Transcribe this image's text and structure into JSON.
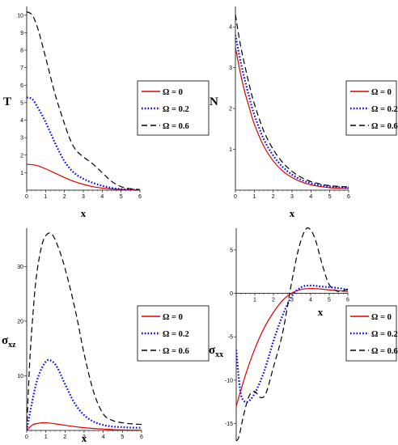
{
  "chart_data": [
    {
      "type": "line",
      "xlabel": "x",
      "ylabel": "T",
      "xlim": [
        0,
        6
      ],
      "ylim": [
        0,
        10.5
      ],
      "xticks": [
        "0",
        "1",
        "2",
        "3",
        "4",
        "5",
        "6"
      ],
      "yticks": [
        "1",
        "2",
        "3",
        "4",
        "5",
        "6",
        "7",
        "8",
        "9",
        "10"
      ],
      "legend": "right",
      "series": [
        {
          "name": "Ω = 0",
          "color": "#e00000",
          "style": "solid",
          "x": [
            0,
            0.5,
            1,
            1.5,
            2,
            2.5,
            3,
            3.5,
            4,
            4.5,
            5,
            5.5,
            6
          ],
          "y": [
            1.48,
            1.42,
            1.22,
            0.97,
            0.72,
            0.5,
            0.33,
            0.2,
            0.12,
            0.07,
            0.04,
            0.02,
            0.01
          ]
        },
        {
          "name": "Ω = 0.2",
          "color": "#0000ff",
          "style": "dotted",
          "x": [
            0,
            0.3,
            0.6,
            1,
            1.5,
            2,
            2.5,
            3,
            3.5,
            4,
            4.5,
            5,
            5.5,
            6
          ],
          "y": [
            5.3,
            5.2,
            4.7,
            3.9,
            2.7,
            1.65,
            1.0,
            0.65,
            0.42,
            0.25,
            0.13,
            0.06,
            0.03,
            0.02
          ]
        },
        {
          "name": "Ω = 0.6",
          "color": "#000000",
          "style": "dashed",
          "x": [
            0,
            0.3,
            0.6,
            1,
            1.5,
            2,
            2.3,
            2.6,
            3,
            3.5,
            4,
            4.5,
            5,
            5.5,
            6
          ],
          "y": [
            10.2,
            10.0,
            9.2,
            7.6,
            5.5,
            3.8,
            2.9,
            2.3,
            1.9,
            1.5,
            1.0,
            0.5,
            0.2,
            0.08,
            0.03
          ]
        }
      ]
    },
    {
      "type": "line",
      "xlabel": "x",
      "ylabel": "N",
      "xlim": [
        0,
        6
      ],
      "ylim": [
        0,
        4.5
      ],
      "xticks": [
        "0",
        "1",
        "2",
        "3",
        "4",
        "5",
        "6"
      ],
      "yticks": [
        "1",
        "2",
        "3",
        "4"
      ],
      "legend": "right",
      "series": [
        {
          "name": "Ω = 0",
          "color": "#e00000",
          "style": "solid",
          "x": [
            0,
            0.25,
            0.5,
            0.75,
            1,
            1.5,
            2,
            2.5,
            3,
            3.5,
            4,
            4.5,
            5,
            5.5,
            6
          ],
          "y": [
            3.5,
            2.9,
            2.4,
            2.0,
            1.62,
            1.08,
            0.72,
            0.47,
            0.31,
            0.2,
            0.13,
            0.09,
            0.06,
            0.05,
            0.04
          ]
        },
        {
          "name": "Ω = 0.2",
          "color": "#0000ff",
          "style": "dotted",
          "x": [
            0,
            0.25,
            0.5,
            0.75,
            1,
            1.5,
            2,
            2.5,
            3,
            3.5,
            4,
            4.5,
            5,
            5.5,
            6
          ],
          "y": [
            3.8,
            3.2,
            2.7,
            2.25,
            1.85,
            1.25,
            0.85,
            0.57,
            0.38,
            0.25,
            0.17,
            0.12,
            0.09,
            0.07,
            0.06
          ]
        },
        {
          "name": "Ω = 0.6",
          "color": "#000000",
          "style": "dashed",
          "x": [
            0,
            0.25,
            0.5,
            0.75,
            1,
            1.5,
            2,
            2.5,
            3,
            3.5,
            4,
            4.5,
            5,
            5.5,
            6
          ],
          "y": [
            4.3,
            3.6,
            3.05,
            2.55,
            2.12,
            1.45,
            1.0,
            0.68,
            0.46,
            0.31,
            0.21,
            0.15,
            0.11,
            0.09,
            0.08
          ]
        }
      ]
    },
    {
      "type": "line",
      "xlabel": "x",
      "ylabel": "σ",
      "ylabel_sub": "xz",
      "xlim": [
        0,
        6
      ],
      "ylim": [
        0,
        37
      ],
      "xticks": [
        "0",
        "1",
        "2",
        "3",
        "4",
        "5",
        "6"
      ],
      "yticks": [
        "10",
        "20",
        "30"
      ],
      "legend": "right",
      "series": [
        {
          "name": "Ω = 0",
          "color": "#e00000",
          "style": "solid",
          "x": [
            0,
            0.3,
            0.6,
            1,
            1.5,
            2,
            2.5,
            3,
            3.5,
            4,
            4.5,
            5,
            5.5,
            6
          ],
          "y": [
            0,
            1.0,
            1.3,
            1.4,
            1.2,
            0.95,
            0.7,
            0.5,
            0.35,
            0.25,
            0.15,
            0.1,
            0.06,
            0.04
          ]
        },
        {
          "name": "Ω = 0.2",
          "color": "#0000ff",
          "style": "dotted",
          "x": [
            0,
            0.3,
            0.6,
            1,
            1.3,
            1.6,
            2,
            2.5,
            3,
            3.5,
            4,
            4.5,
            5,
            5.5,
            6
          ],
          "y": [
            0,
            5.5,
            9.8,
            12.6,
            12.7,
            11.5,
            8.5,
            5.0,
            2.8,
            1.6,
            1.0,
            0.7,
            0.6,
            0.5,
            0.5
          ]
        },
        {
          "name": "Ω = 0.6",
          "color": "#000000",
          "style": "dashed",
          "x": [
            0,
            0.15,
            0.3,
            0.5,
            0.8,
            1.1,
            1.4,
            1.8,
            2.2,
            2.6,
            3,
            3.5,
            4,
            4.5,
            5,
            5.5,
            6
          ],
          "y": [
            0,
            12,
            20,
            28,
            34,
            36,
            35.5,
            32,
            27,
            21,
            14,
            7,
            3,
            1.8,
            1.4,
            1.2,
            1.1
          ]
        }
      ]
    },
    {
      "type": "line",
      "xlabel": "x",
      "ylabel": "σ",
      "ylabel_sub": "xx",
      "xlim": [
        0,
        6
      ],
      "ylim": [
        -17,
        7.5
      ],
      "xticks": [
        "1",
        "2",
        "3",
        "4",
        "5",
        "6"
      ],
      "yticks": [
        "5",
        "0",
        "-5",
        "-10",
        "-15"
      ],
      "legend": "right",
      "series": [
        {
          "name": "Ω = 0",
          "color": "#e00000",
          "style": "solid",
          "x": [
            0,
            0.5,
            1,
            1.5,
            2,
            2.5,
            3,
            3.5,
            4,
            4.5,
            5,
            5.5,
            6
          ],
          "y": [
            -13,
            -9.4,
            -6.4,
            -4.0,
            -2.2,
            -0.8,
            0.05,
            0.45,
            0.55,
            0.5,
            0.4,
            0.3,
            0.2
          ]
        },
        {
          "name": "Ω = 0.2",
          "color": "#0000ff",
          "style": "dotted",
          "x": [
            0,
            0.15,
            0.3,
            0.6,
            1,
            1.5,
            2,
            2.5,
            3,
            3.5,
            4,
            4.5,
            5,
            5.5,
            6
          ],
          "y": [
            -6.5,
            -10,
            -12,
            -12.5,
            -11.5,
            -9,
            -5.5,
            -2.5,
            -0.3,
            0.7,
            0.9,
            0.8,
            0.7,
            0.6,
            0.4
          ]
        },
        {
          "name": "Ω = 0.6",
          "color": "#000000",
          "style": "dashed",
          "x": [
            0,
            0.15,
            0.4,
            0.7,
            1,
            1.3,
            1.6,
            2,
            2.5,
            3,
            3.4,
            3.8,
            4.2,
            4.6,
            5,
            5.5,
            6
          ],
          "y": [
            -17,
            -16.5,
            -14,
            -11.8,
            -11.3,
            -12,
            -11.5,
            -8.5,
            -4.5,
            1.5,
            5.5,
            7.5,
            6.5,
            3.5,
            1.0,
            0.2,
            0.5
          ]
        }
      ]
    }
  ]
}
